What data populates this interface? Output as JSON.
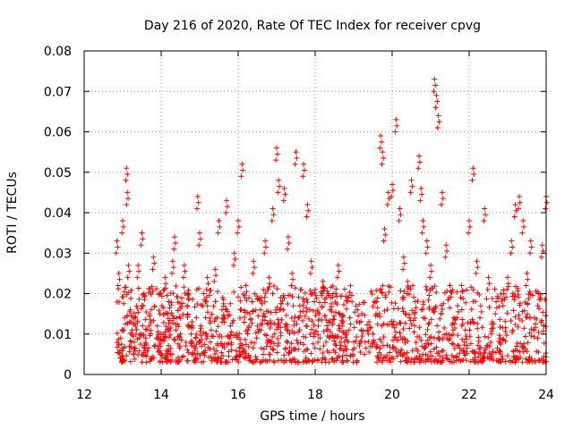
{
  "chart_data": {
    "type": "scatter",
    "title": "Day 216 of 2020, Rate Of TEC Index for receiver cpvg",
    "xlabel": "GPS time / hours",
    "ylabel": "ROTI / TECUs",
    "xlim": [
      12,
      24
    ],
    "ylim": [
      0,
      0.08
    ],
    "x_ticks": [
      12,
      14,
      16,
      18,
      20,
      22,
      24
    ],
    "x_tick_labels": [
      "12",
      "14",
      "16",
      "18",
      "20",
      "22",
      "24"
    ],
    "y_ticks": [
      0,
      0.01,
      0.02,
      0.03,
      0.04,
      0.05,
      0.06,
      0.07,
      0.08
    ],
    "y_tick_labels": [
      "0",
      "0.01",
      "0.02",
      "0.03",
      "0.04",
      "0.05",
      "0.06",
      "0.07",
      "0.08"
    ],
    "grid": true,
    "marker": "+",
    "marker_color": "#ff0000",
    "series": [
      {
        "name": "ROTI",
        "x": [
          12.85,
          12.9,
          12.95,
          13.0,
          13.05,
          13.1,
          13.12,
          13.15,
          13.2,
          13.25,
          13.3,
          13.4,
          13.5,
          13.55,
          13.6,
          13.7,
          13.8,
          13.9,
          14.0,
          14.1,
          14.2,
          14.3,
          14.35,
          14.4,
          14.5,
          14.6,
          14.7,
          14.8,
          14.9,
          14.95,
          15.0,
          15.1,
          15.2,
          15.3,
          15.4,
          15.5,
          15.6,
          15.7,
          15.8,
          15.9,
          16.0,
          16.1,
          16.2,
          16.3,
          16.4,
          16.5,
          16.6,
          16.7,
          16.8,
          16.9,
          17.0,
          17.05,
          17.1,
          17.2,
          17.3,
          17.4,
          17.5,
          17.6,
          17.7,
          17.8,
          17.9,
          18.0,
          18.1,
          18.2,
          18.3,
          18.4,
          18.5,
          18.6,
          18.7,
          18.8,
          18.9,
          19.0,
          19.1,
          19.2,
          19.3,
          19.4,
          19.5,
          19.6,
          19.7,
          19.75,
          19.8,
          19.9,
          20.0,
          20.1,
          20.2,
          20.3,
          20.4,
          20.5,
          20.6,
          20.7,
          20.75,
          20.8,
          20.9,
          21.0,
          21.1,
          21.15,
          21.2,
          21.3,
          21.4,
          21.5,
          21.6,
          21.7,
          21.8,
          21.9,
          22.0,
          22.1,
          22.2,
          22.3,
          22.4,
          22.5,
          22.6,
          22.7,
          22.8,
          22.9,
          23.0,
          23.1,
          23.2,
          23.3,
          23.4,
          23.5,
          23.6,
          23.7,
          23.8,
          23.9,
          24.0
        ],
        "y": [
          0.033,
          0.025,
          0.009,
          0.038,
          0.014,
          0.051,
          0.045,
          0.027,
          0.016,
          0.011,
          0.008,
          0.027,
          0.035,
          0.02,
          0.009,
          0.015,
          0.029,
          0.012,
          0.01,
          0.024,
          0.018,
          0.028,
          0.034,
          0.014,
          0.01,
          0.027,
          0.02,
          0.013,
          0.009,
          0.044,
          0.035,
          0.02,
          0.024,
          0.011,
          0.026,
          0.038,
          0.019,
          0.043,
          0.012,
          0.03,
          0.038,
          0.052,
          0.022,
          0.015,
          0.028,
          0.012,
          0.019,
          0.033,
          0.024,
          0.041,
          0.056,
          0.048,
          0.019,
          0.046,
          0.034,
          0.025,
          0.055,
          0.017,
          0.052,
          0.042,
          0.028,
          0.021,
          0.015,
          0.023,
          0.011,
          0.019,
          0.009,
          0.027,
          0.012,
          0.01,
          0.014,
          0.008,
          0.016,
          0.011,
          0.008,
          0.013,
          0.01,
          0.018,
          0.059,
          0.055,
          0.036,
          0.045,
          0.047,
          0.063,
          0.041,
          0.029,
          0.023,
          0.048,
          0.018,
          0.054,
          0.046,
          0.038,
          0.033,
          0.027,
          0.073,
          0.069,
          0.064,
          0.045,
          0.032,
          0.022,
          0.014,
          0.017,
          0.022,
          0.011,
          0.038,
          0.051,
          0.028,
          0.017,
          0.041,
          0.024,
          0.013,
          0.018,
          0.009,
          0.02,
          0.024,
          0.033,
          0.042,
          0.044,
          0.038,
          0.025,
          0.033,
          0.014,
          0.02,
          0.032,
          0.044
        ],
        "dense_band": {
          "x_range": [
            12.85,
            24.0
          ],
          "y_range": [
            0.003,
            0.022
          ],
          "note": "thousands of overlapping points concentrated in this band"
        }
      }
    ]
  }
}
